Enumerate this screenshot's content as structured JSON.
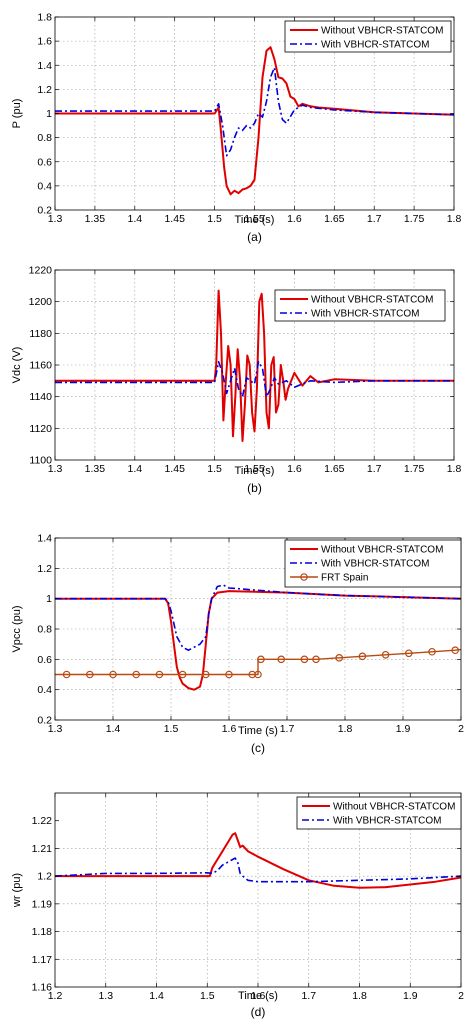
{
  "chart_data": [
    {
      "type": "line",
      "panel_label": "(a)",
      "xlabel": "Time (s)",
      "ylabel": "P (pu)",
      "xlim": [
        1.3,
        1.8
      ],
      "ylim": [
        0.2,
        1.8
      ],
      "xticks": [
        1.3,
        1.35,
        1.4,
        1.45,
        1.5,
        1.55,
        1.6,
        1.65,
        1.7,
        1.75,
        1.8
      ],
      "xtick_labels": [
        "1.3",
        "1.35",
        "1.4",
        "1.45",
        "1.5",
        "1.55",
        "1.6",
        "1.65",
        "1.7",
        "1.75",
        "1.8"
      ],
      "yticks": [
        0.2,
        0.4,
        0.6,
        0.8,
        1,
        1.2,
        1.4,
        1.6,
        1.8
      ],
      "ytick_labels": [
        "0.2",
        "0.4",
        "0.6",
        "0.8",
        "1",
        "1.2",
        "1.4",
        "1.6",
        "1.8"
      ],
      "grid": true,
      "legend_position": "top-right",
      "series": [
        {
          "name": "Without VBHCR-STATCOM",
          "color": "#e00000",
          "style": "solid",
          "x": [
            1.3,
            1.5,
            1.505,
            1.508,
            1.512,
            1.515,
            1.52,
            1.525,
            1.53,
            1.535,
            1.54,
            1.545,
            1.55,
            1.555,
            1.56,
            1.565,
            1.57,
            1.575,
            1.58,
            1.585,
            1.59,
            1.595,
            1.6,
            1.605,
            1.61,
            1.62,
            1.63,
            1.65,
            1.7,
            1.75,
            1.8
          ],
          "y": [
            1.0,
            1.0,
            1.05,
            0.85,
            0.55,
            0.4,
            0.33,
            0.36,
            0.34,
            0.37,
            0.38,
            0.4,
            0.45,
            0.8,
            1.3,
            1.52,
            1.55,
            1.45,
            1.3,
            1.29,
            1.25,
            1.14,
            1.12,
            1.06,
            1.08,
            1.06,
            1.05,
            1.04,
            1.01,
            1.0,
            0.99
          ]
        },
        {
          "name": "With VBHCR-STATCOM",
          "color": "#0000dd",
          "style": "dashdot",
          "x": [
            1.3,
            1.5,
            1.505,
            1.51,
            1.515,
            1.52,
            1.525,
            1.53,
            1.535,
            1.54,
            1.545,
            1.55,
            1.555,
            1.56,
            1.565,
            1.57,
            1.575,
            1.58,
            1.585,
            1.59,
            1.6,
            1.61,
            1.62,
            1.65,
            1.7,
            1.75,
            1.8
          ],
          "y": [
            1.02,
            1.02,
            1.08,
            0.9,
            0.65,
            0.7,
            0.8,
            0.88,
            0.86,
            0.9,
            0.88,
            0.92,
            1.0,
            0.97,
            1.1,
            1.3,
            1.38,
            1.1,
            0.95,
            0.92,
            1.03,
            1.07,
            1.05,
            1.03,
            1.01,
            1.0,
            0.99
          ]
        }
      ]
    },
    {
      "type": "line",
      "panel_label": "(b)",
      "xlabel": "Time (s)",
      "ylabel": "Vdc (V)",
      "xlim": [
        1.3,
        1.8
      ],
      "ylim": [
        1100,
        1220
      ],
      "xticks": [
        1.3,
        1.35,
        1.4,
        1.45,
        1.5,
        1.55,
        1.6,
        1.65,
        1.7,
        1.75,
        1.8
      ],
      "xtick_labels": [
        "1.3",
        "1.35",
        "1.4",
        "1.45",
        "1.5",
        "1.55",
        "1.6",
        "1.65",
        "1.7",
        "1.75",
        "1.8"
      ],
      "yticks": [
        1100,
        1120,
        1140,
        1160,
        1180,
        1200,
        1220
      ],
      "ytick_labels": [
        "1100",
        "1120",
        "1140",
        "1160",
        "1180",
        "1200",
        "1220"
      ],
      "grid": true,
      "legend_position": "top-right",
      "series": [
        {
          "name": "Without VBHCR-STATCOM",
          "color": "#e00000",
          "style": "solid",
          "x": [
            1.3,
            1.5,
            1.502,
            1.505,
            1.508,
            1.511,
            1.514,
            1.517,
            1.52,
            1.523,
            1.526,
            1.529,
            1.532,
            1.535,
            1.538,
            1.541,
            1.544,
            1.547,
            1.55,
            1.553,
            1.556,
            1.559,
            1.562,
            1.565,
            1.568,
            1.571,
            1.574,
            1.577,
            1.58,
            1.583,
            1.586,
            1.589,
            1.592,
            1.6,
            1.61,
            1.62,
            1.63,
            1.65,
            1.7,
            1.8
          ],
          "y": [
            1150,
            1150,
            1160,
            1207,
            1180,
            1125,
            1150,
            1172,
            1160,
            1115,
            1140,
            1170,
            1150,
            1112,
            1135,
            1166,
            1160,
            1130,
            1118,
            1145,
            1200,
            1205,
            1180,
            1130,
            1120,
            1160,
            1165,
            1130,
            1135,
            1160,
            1150,
            1138,
            1145,
            1155,
            1147,
            1153,
            1149,
            1151,
            1150,
            1150
          ]
        },
        {
          "name": "With VBHCR-STATCOM",
          "color": "#0000dd",
          "style": "dashdot",
          "x": [
            1.3,
            1.5,
            1.505,
            1.51,
            1.515,
            1.52,
            1.525,
            1.53,
            1.535,
            1.54,
            1.545,
            1.55,
            1.555,
            1.56,
            1.565,
            1.57,
            1.575,
            1.58,
            1.59,
            1.6,
            1.62,
            1.65,
            1.7,
            1.8
          ],
          "y": [
            1149,
            1149,
            1162,
            1155,
            1142,
            1150,
            1158,
            1145,
            1140,
            1152,
            1150,
            1148,
            1162,
            1158,
            1140,
            1145,
            1152,
            1148,
            1150,
            1146,
            1150,
            1149,
            1150,
            1150
          ]
        }
      ]
    },
    {
      "type": "line",
      "panel_label": "(c)",
      "xlabel": "Time (s)",
      "ylabel": "Vpcc (pu)",
      "xlim": [
        1.3,
        2.0
      ],
      "ylim": [
        0.2,
        1.4
      ],
      "xticks": [
        1.3,
        1.4,
        1.5,
        1.6,
        1.7,
        1.8,
        1.9,
        2.0
      ],
      "xtick_labels": [
        "1.3",
        "1.4",
        "1.5",
        "1.6",
        "1.7",
        "1.8",
        "1.9",
        "2"
      ],
      "yticks": [
        0.2,
        0.4,
        0.6,
        0.8,
        1,
        1.2,
        1.4
      ],
      "ytick_labels": [
        "0.2",
        "0.4",
        "0.6",
        "0.8",
        "1",
        "1.2",
        "1.4"
      ],
      "grid": true,
      "legend_position": "top-right",
      "series": [
        {
          "name": "Without VBHCR-STATCOM",
          "color": "#e00000",
          "style": "solid",
          "x": [
            1.3,
            1.49,
            1.495,
            1.5,
            1.505,
            1.51,
            1.515,
            1.52,
            1.53,
            1.54,
            1.55,
            1.555,
            1.56,
            1.565,
            1.57,
            1.58,
            1.6,
            1.7,
            1.8,
            1.9,
            2.0
          ],
          "y": [
            1.0,
            1.0,
            0.97,
            0.85,
            0.7,
            0.55,
            0.48,
            0.44,
            0.41,
            0.4,
            0.42,
            0.5,
            0.7,
            0.9,
            1.0,
            1.04,
            1.05,
            1.04,
            1.02,
            1.01,
            1.0
          ]
        },
        {
          "name": "With VBHCR-STATCOM",
          "color": "#0000dd",
          "style": "dashdot",
          "x": [
            1.3,
            1.49,
            1.495,
            1.5,
            1.51,
            1.52,
            1.53,
            1.54,
            1.55,
            1.56,
            1.565,
            1.57,
            1.58,
            1.59,
            1.6,
            1.7,
            1.8,
            1.9,
            2.0
          ],
          "y": [
            1.0,
            1.0,
            0.98,
            0.92,
            0.75,
            0.68,
            0.66,
            0.68,
            0.7,
            0.75,
            0.9,
            1.0,
            1.08,
            1.09,
            1.07,
            1.04,
            1.02,
            1.01,
            1.0
          ]
        },
        {
          "name": "FRT Spain",
          "color": "#b84a12",
          "style": "solid-marker",
          "x": [
            1.3,
            1.32,
            1.36,
            1.4,
            1.44,
            1.48,
            1.52,
            1.56,
            1.6,
            1.64,
            1.65,
            1.65,
            1.655,
            1.69,
            1.73,
            1.75,
            1.79,
            1.83,
            1.87,
            1.91,
            1.95,
            1.99,
            2.0
          ],
          "y": [
            0.5,
            0.5,
            0.5,
            0.5,
            0.5,
            0.5,
            0.5,
            0.5,
            0.5,
            0.5,
            0.5,
            0.6,
            0.6,
            0.6,
            0.6,
            0.6,
            0.61,
            0.62,
            0.63,
            0.64,
            0.65,
            0.66,
            0.665
          ],
          "markers_x": [
            1.32,
            1.36,
            1.4,
            1.44,
            1.48,
            1.52,
            1.56,
            1.6,
            1.64,
            1.65,
            1.655,
            1.69,
            1.73,
            1.75,
            1.79,
            1.83,
            1.87,
            1.91,
            1.95,
            1.99
          ],
          "markers_y": [
            0.5,
            0.5,
            0.5,
            0.5,
            0.5,
            0.5,
            0.5,
            0.5,
            0.5,
            0.5,
            0.6,
            0.6,
            0.6,
            0.6,
            0.61,
            0.62,
            0.63,
            0.64,
            0.65,
            0.66
          ]
        }
      ]
    },
    {
      "type": "line",
      "panel_label": "(d)",
      "xlabel": "Time (s)",
      "ylabel": "wr (pu)",
      "xlim": [
        1.2,
        2.0
      ],
      "ylim": [
        1.16,
        1.23
      ],
      "xticks": [
        1.2,
        1.3,
        1.4,
        1.5,
        1.6,
        1.7,
        1.8,
        1.9,
        2.0
      ],
      "xtick_labels": [
        "1.2",
        "1.3",
        "1.4",
        "1.5",
        "1.6",
        "1.7",
        "1.8",
        "1.9",
        "2"
      ],
      "yticks": [
        1.16,
        1.17,
        1.18,
        1.19,
        1.2,
        1.21,
        1.22
      ],
      "ytick_labels": [
        "1.16",
        "1.17",
        "1.18",
        "1.19",
        "1.2",
        "1.21",
        "1.22"
      ],
      "grid": true,
      "legend_position": "top-right",
      "series": [
        {
          "name": "Without VBHCR-STATCOM",
          "color": "#e00000",
          "style": "solid",
          "x": [
            1.2,
            1.5,
            1.505,
            1.51,
            1.52,
            1.53,
            1.54,
            1.55,
            1.555,
            1.56,
            1.565,
            1.57,
            1.58,
            1.6,
            1.65,
            1.7,
            1.75,
            1.8,
            1.85,
            1.9,
            1.95,
            2.0
          ],
          "y": [
            1.2,
            1.2,
            1.2,
            1.203,
            1.206,
            1.209,
            1.212,
            1.215,
            1.2155,
            1.213,
            1.2105,
            1.211,
            1.209,
            1.207,
            1.2025,
            1.1985,
            1.1965,
            1.1958,
            1.196,
            1.197,
            1.198,
            1.1995
          ]
        },
        {
          "name": "With VBHCR-STATCOM",
          "color": "#0000dd",
          "style": "dashdot",
          "x": [
            1.2,
            1.3,
            1.4,
            1.5,
            1.51,
            1.52,
            1.53,
            1.54,
            1.55,
            1.555,
            1.56,
            1.565,
            1.57,
            1.58,
            1.6,
            1.65,
            1.7,
            1.8,
            1.9,
            2.0
          ],
          "y": [
            1.2,
            1.201,
            1.201,
            1.2012,
            1.201,
            1.202,
            1.204,
            1.205,
            1.206,
            1.2065,
            1.205,
            1.201,
            1.2,
            1.1985,
            1.198,
            1.198,
            1.198,
            1.1985,
            1.199,
            1.2
          ]
        }
      ]
    }
  ]
}
